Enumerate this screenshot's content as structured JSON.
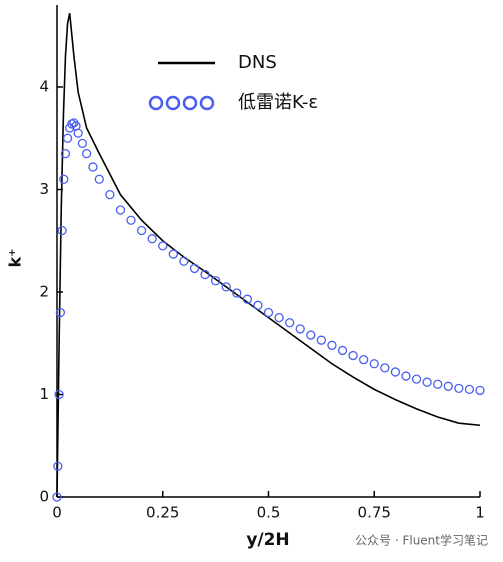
{
  "chart_data": {
    "type": "line",
    "x_label": "y/2H",
    "y_label": "k⁺",
    "xlim": [
      0,
      1
    ],
    "xticks": [
      0,
      0.25,
      0.5,
      0.75,
      1
    ],
    "ylim": [
      0,
      4.8
    ],
    "yticks": [
      0,
      1,
      2,
      3,
      4
    ],
    "watermark": "公众号 · Fluent学习笔记",
    "series": [
      {
        "name": "DNS",
        "color": "#000000",
        "mode": "line",
        "x": [
          0,
          0.005,
          0.01,
          0.015,
          0.02,
          0.025,
          0.03,
          0.04,
          0.05,
          0.07,
          0.1,
          0.15,
          0.2,
          0.25,
          0.3,
          0.35,
          0.4,
          0.45,
          0.5,
          0.55,
          0.6,
          0.65,
          0.7,
          0.75,
          0.8,
          0.85,
          0.9,
          0.95,
          1
        ],
        "values": [
          0,
          1.5,
          2.8,
          3.7,
          4.3,
          4.62,
          4.72,
          4.3,
          3.95,
          3.6,
          3.35,
          2.95,
          2.7,
          2.5,
          2.34,
          2.2,
          2.05,
          1.9,
          1.75,
          1.6,
          1.45,
          1.3,
          1.17,
          1.05,
          0.95,
          0.86,
          0.78,
          0.72,
          0.7
        ]
      },
      {
        "name": "低雷诺K-ε",
        "color": "#4a5ef0",
        "mode": "markers",
        "x": [
          0,
          0.002,
          0.005,
          0.008,
          0.012,
          0.016,
          0.02,
          0.025,
          0.03,
          0.035,
          0.04,
          0.045,
          0.05,
          0.06,
          0.07,
          0.085,
          0.1,
          0.125,
          0.15,
          0.175,
          0.2,
          0.225,
          0.25,
          0.275,
          0.3,
          0.325,
          0.35,
          0.375,
          0.4,
          0.425,
          0.45,
          0.475,
          0.5,
          0.525,
          0.55,
          0.575,
          0.6,
          0.625,
          0.65,
          0.675,
          0.7,
          0.725,
          0.75,
          0.775,
          0.8,
          0.825,
          0.85,
          0.875,
          0.9,
          0.925,
          0.95,
          0.975,
          1
        ],
        "values": [
          0,
          0.3,
          1.0,
          1.8,
          2.6,
          3.1,
          3.35,
          3.5,
          3.6,
          3.64,
          3.65,
          3.62,
          3.55,
          3.45,
          3.35,
          3.22,
          3.1,
          2.95,
          2.8,
          2.7,
          2.6,
          2.52,
          2.45,
          2.37,
          2.3,
          2.23,
          2.17,
          2.11,
          2.05,
          1.99,
          1.93,
          1.87,
          1.8,
          1.75,
          1.7,
          1.64,
          1.58,
          1.53,
          1.48,
          1.43,
          1.38,
          1.34,
          1.3,
          1.26,
          1.22,
          1.18,
          1.15,
          1.12,
          1.1,
          1.08,
          1.06,
          1.05,
          1.04
        ]
      }
    ]
  }
}
